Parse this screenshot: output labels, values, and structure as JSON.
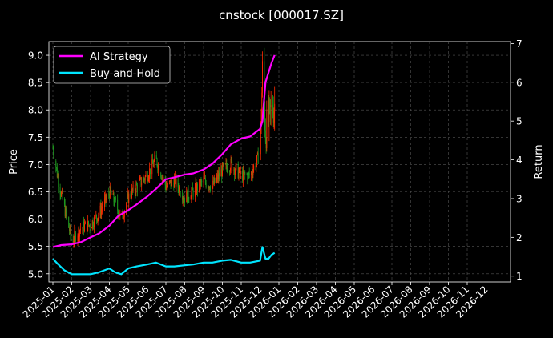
{
  "chart_data": {
    "type": "line",
    "title": "cnstock [000017.SZ]",
    "ylabel": "Price",
    "y2label": "Return",
    "ylim": [
      4.85,
      9.25
    ],
    "y2lim": [
      0.85,
      7.05
    ],
    "yticks": [
      "5.0",
      "5.5",
      "6.0",
      "6.5",
      "7.0",
      "7.5",
      "8.0",
      "8.5",
      "9.0"
    ],
    "y2ticks": [
      "1",
      "2",
      "3",
      "4",
      "5",
      "6",
      "7"
    ],
    "xticks": [
      "2025-01",
      "2025-02",
      "2025-03",
      "2025-04",
      "2025-05",
      "2025-06",
      "2025-07",
      "2025-08",
      "2025-09",
      "2025-10",
      "2025-11",
      "2025-12",
      "2026-01",
      "2026-02",
      "2026-03",
      "2026-04",
      "2026-05",
      "2026-06",
      "2026-07",
      "2026-08",
      "2026-09",
      "2026-10",
      "2026-11",
      "2026-12"
    ],
    "grid": true,
    "legend_position": "top-left",
    "background": "#000000",
    "colors": {
      "up": "#ff2a00",
      "down": "#1f9a1f",
      "ai": "#ff00ff",
      "bh": "#00e5ff",
      "grid": "#555555"
    },
    "series": [
      {
        "name": "AI Strategy",
        "axis": "Return",
        "x": [
          "2025-01-01",
          "2025-01-15",
          "2025-02-01",
          "2025-02-15",
          "2025-03-01",
          "2025-03-15",
          "2025-04-01",
          "2025-04-15",
          "2025-05-01",
          "2025-05-15",
          "2025-06-01",
          "2025-06-15",
          "2025-07-01",
          "2025-07-15",
          "2025-08-01",
          "2025-08-15",
          "2025-09-01",
          "2025-09-15",
          "2025-10-01",
          "2025-10-15",
          "2025-11-01",
          "2025-11-15",
          "2025-12-01",
          "2025-12-05",
          "2025-12-10",
          "2025-12-15",
          "2025-12-20",
          "2025-12-25"
        ],
        "values": [
          1.75,
          1.8,
          1.82,
          1.88,
          2.0,
          2.1,
          2.3,
          2.55,
          2.7,
          2.85,
          3.05,
          3.25,
          3.5,
          3.55,
          3.62,
          3.65,
          3.75,
          3.9,
          4.15,
          4.4,
          4.55,
          4.6,
          4.8,
          5.0,
          6.0,
          6.25,
          6.5,
          6.7
        ]
      },
      {
        "name": "Buy-and-Hold",
        "axis": "Return",
        "x": [
          "2025-01-01",
          "2025-01-10",
          "2025-01-20",
          "2025-02-01",
          "2025-02-15",
          "2025-03-01",
          "2025-03-15",
          "2025-04-01",
          "2025-04-10",
          "2025-04-20",
          "2025-05-01",
          "2025-05-15",
          "2025-06-01",
          "2025-06-15",
          "2025-07-01",
          "2025-07-15",
          "2025-08-01",
          "2025-08-15",
          "2025-09-01",
          "2025-09-15",
          "2025-10-01",
          "2025-10-15",
          "2025-11-01",
          "2025-11-15",
          "2025-12-01",
          "2025-12-05",
          "2025-12-10",
          "2025-12-15",
          "2025-12-20",
          "2025-12-25"
        ],
        "values": [
          1.45,
          1.3,
          1.15,
          1.05,
          1.05,
          1.05,
          1.1,
          1.2,
          1.1,
          1.05,
          1.2,
          1.25,
          1.3,
          1.35,
          1.25,
          1.25,
          1.28,
          1.3,
          1.35,
          1.35,
          1.4,
          1.42,
          1.35,
          1.35,
          1.4,
          1.75,
          1.45,
          1.45,
          1.55,
          1.6
        ]
      },
      {
        "name": "Price",
        "axis": "Price",
        "x": [
          "2025-01-01",
          "2025-01-10",
          "2025-01-20",
          "2025-02-01",
          "2025-02-15",
          "2025-03-01",
          "2025-03-15",
          "2025-04-01",
          "2025-04-10",
          "2025-04-20",
          "2025-05-01",
          "2025-05-15",
          "2025-06-01",
          "2025-06-15",
          "2025-07-01",
          "2025-07-15",
          "2025-08-01",
          "2025-08-15",
          "2025-09-01",
          "2025-09-15",
          "2025-10-01",
          "2025-10-15",
          "2025-11-01",
          "2025-11-15",
          "2025-12-01",
          "2025-12-05",
          "2025-12-10",
          "2025-12-15",
          "2025-12-20",
          "2025-12-25"
        ],
        "values": [
          7.3,
          6.7,
          6.2,
          5.6,
          5.85,
          5.9,
          6.1,
          6.5,
          6.3,
          6.0,
          6.4,
          6.6,
          6.8,
          7.1,
          6.6,
          6.7,
          6.4,
          6.5,
          6.7,
          6.6,
          6.9,
          7.0,
          6.8,
          6.8,
          7.2,
          8.7,
          7.6,
          7.8,
          8.0,
          8.1
        ]
      }
    ]
  }
}
